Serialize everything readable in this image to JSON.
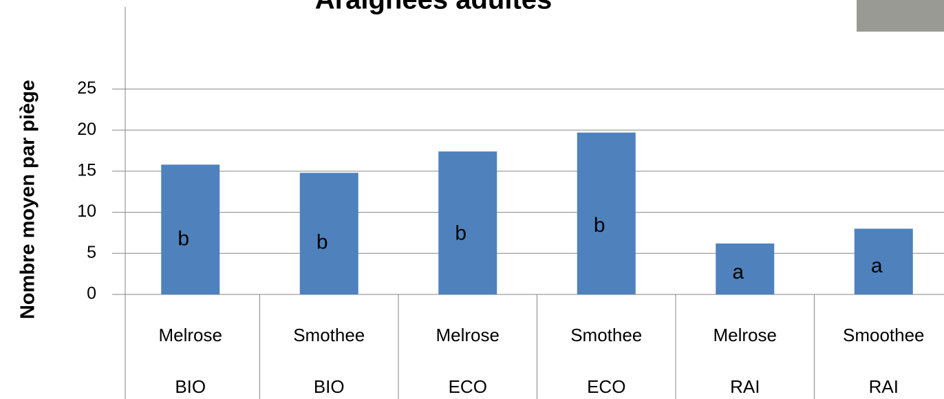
{
  "chart_data": {
    "type": "bar",
    "title": "Araignées adultes",
    "y_label": "Nombre moyen par piège",
    "categories": [
      "Melrose",
      "Smothee",
      "Melrose",
      "Smothee",
      "Melrose",
      "Smoothee"
    ],
    "groups": [
      "BIO",
      "BIO",
      "ECO",
      "ECO",
      "RAI",
      "RAI"
    ],
    "values": [
      15.8,
      14.8,
      17.4,
      19.7,
      6.2,
      8.0
    ],
    "annotations": [
      "b",
      "b",
      "b",
      "b",
      "a",
      "a"
    ],
    "color": "#4f81bd",
    "ylim": [
      0,
      35
    ],
    "yticks": [
      0,
      5,
      10,
      15,
      20,
      25
    ],
    "grid": true
  }
}
